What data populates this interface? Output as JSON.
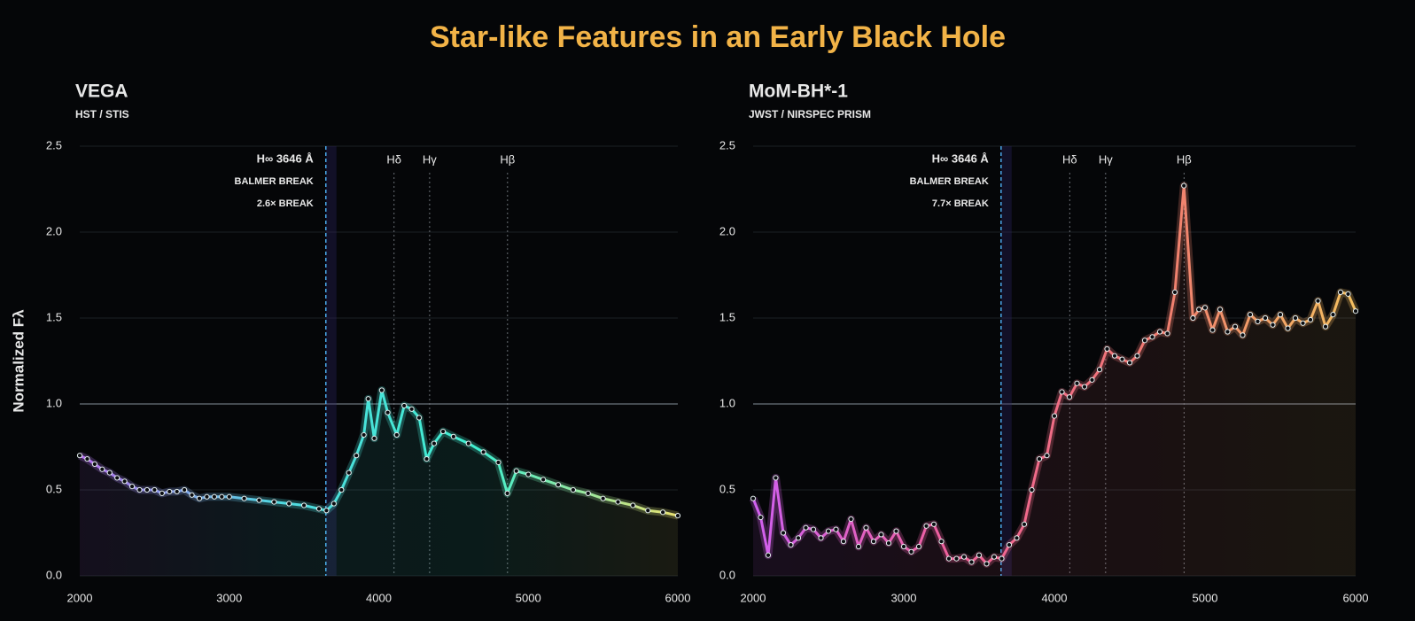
{
  "title": "Star-like Features in an Early Black Hole",
  "chart_data": [
    {
      "type": "line",
      "title": "VEGA",
      "subtitle": "HST / STIS",
      "y_label": "Normalized Fλ",
      "x": [
        2000,
        2050,
        2100,
        2150,
        2200,
        2250,
        2300,
        2350,
        2400,
        2450,
        2500,
        2550,
        2600,
        2650,
        2700,
        2750,
        2800,
        2850,
        2900,
        2950,
        3000,
        3100,
        3200,
        3300,
        3400,
        3500,
        3600,
        3650,
        3700,
        3750,
        3800,
        3850,
        3900,
        3930,
        3970,
        4020,
        4060,
        4120,
        4170,
        4220,
        4270,
        4320,
        4370,
        4430,
        4500,
        4600,
        4700,
        4800,
        4860,
        4920,
        5000,
        5100,
        5200,
        5300,
        5400,
        5500,
        5600,
        5700,
        5800,
        5900,
        6000
      ],
      "values": [
        0.7,
        0.68,
        0.65,
        0.62,
        0.6,
        0.57,
        0.55,
        0.52,
        0.5,
        0.5,
        0.5,
        0.48,
        0.49,
        0.49,
        0.5,
        0.47,
        0.45,
        0.46,
        0.46,
        0.46,
        0.46,
        0.45,
        0.44,
        0.43,
        0.42,
        0.41,
        0.39,
        0.38,
        0.42,
        0.5,
        0.6,
        0.7,
        0.82,
        1.03,
        0.8,
        1.08,
        0.95,
        0.82,
        0.99,
        0.97,
        0.92,
        0.68,
        0.77,
        0.84,
        0.81,
        0.77,
        0.72,
        0.66,
        0.48,
        0.61,
        0.59,
        0.56,
        0.53,
        0.5,
        0.48,
        0.45,
        0.43,
        0.41,
        0.38,
        0.37,
        0.35
      ],
      "colors": [
        "#b56cf0",
        "#4fd8e0",
        "#3ff0d0",
        "#e8e070"
      ],
      "xlim": [
        2000,
        6000
      ],
      "xticks": [
        2000,
        3000,
        4000,
        5000,
        6000
      ],
      "ylim": [
        0,
        2.5
      ],
      "yticks": [
        {
          "value": 0,
          "label": "0.0"
        },
        0.5,
        {
          "value": 1,
          "label": "1.0"
        },
        1.5,
        {
          "value": 2,
          "label": "2.0"
        },
        2.5
      ],
      "grid": true,
      "hline": 1,
      "break_line": {
        "x": 3646,
        "labels": [
          "H∞ 3646 Å",
          "BALMER BREAK",
          "2.6× BREAK"
        ]
      },
      "lines": [
        {
          "x": 4102,
          "label": "Hδ"
        },
        {
          "x": 4340,
          "label": "Hγ"
        },
        {
          "x": 4861,
          "label": "Hβ"
        }
      ]
    },
    {
      "type": "line",
      "title": "MoM-BH*-1",
      "subtitle": "JWST / NIRSPEC PRISM",
      "x": [
        2000,
        2050,
        2100,
        2150,
        2200,
        2250,
        2300,
        2350,
        2400,
        2450,
        2500,
        2550,
        2600,
        2650,
        2700,
        2750,
        2800,
        2850,
        2900,
        2950,
        3000,
        3050,
        3100,
        3150,
        3200,
        3250,
        3300,
        3350,
        3400,
        3450,
        3500,
        3550,
        3600,
        3650,
        3700,
        3750,
        3800,
        3850,
        3900,
        3950,
        4000,
        4050,
        4100,
        4150,
        4200,
        4250,
        4300,
        4350,
        4400,
        4450,
        4500,
        4550,
        4600,
        4650,
        4700,
        4750,
        4800,
        4860,
        4920,
        4960,
        5000,
        5050,
        5100,
        5150,
        5200,
        5250,
        5300,
        5350,
        5400,
        5450,
        5500,
        5550,
        5600,
        5650,
        5700,
        5750,
        5800,
        5850,
        5900,
        5950,
        6000
      ],
      "values": [
        0.45,
        0.34,
        0.12,
        0.57,
        0.25,
        0.18,
        0.22,
        0.28,
        0.27,
        0.22,
        0.26,
        0.27,
        0.2,
        0.33,
        0.17,
        0.28,
        0.2,
        0.24,
        0.19,
        0.26,
        0.17,
        0.14,
        0.17,
        0.29,
        0.3,
        0.2,
        0.1,
        0.1,
        0.11,
        0.08,
        0.12,
        0.07,
        0.11,
        0.1,
        0.18,
        0.22,
        0.3,
        0.5,
        0.68,
        0.7,
        0.93,
        1.07,
        1.04,
        1.12,
        1.1,
        1.14,
        1.2,
        1.32,
        1.28,
        1.26,
        1.24,
        1.28,
        1.37,
        1.39,
        1.42,
        1.41,
        1.65,
        2.27,
        1.5,
        1.55,
        1.56,
        1.43,
        1.55,
        1.42,
        1.45,
        1.4,
        1.52,
        1.48,
        1.5,
        1.46,
        1.52,
        1.44,
        1.5,
        1.47,
        1.49,
        1.6,
        1.45,
        1.52,
        1.65,
        1.64,
        1.54
      ],
      "colors": [
        "#d060f0",
        "#f0609a",
        "#f07a70",
        "#f5c060"
      ],
      "xlim": [
        2000,
        6000
      ],
      "xticks": [
        2000,
        3000,
        4000,
        5000,
        6000
      ],
      "ylim": [
        0,
        2.5
      ],
      "yticks": [
        {
          "value": 0,
          "label": "0.0"
        },
        0.5,
        {
          "value": 1,
          "label": "1.0"
        },
        1.5,
        {
          "value": 2,
          "label": "2.0"
        },
        2.5
      ],
      "grid": true,
      "hline": 1,
      "break_line": {
        "x": 3646,
        "labels": [
          "H∞ 3646 Å",
          "BALMER BREAK",
          "7.7× BREAK"
        ]
      },
      "lines": [
        {
          "x": 4102,
          "label": "Hδ"
        },
        {
          "x": 4340,
          "label": "Hγ"
        },
        {
          "x": 4861,
          "label": "Hβ"
        }
      ]
    }
  ]
}
